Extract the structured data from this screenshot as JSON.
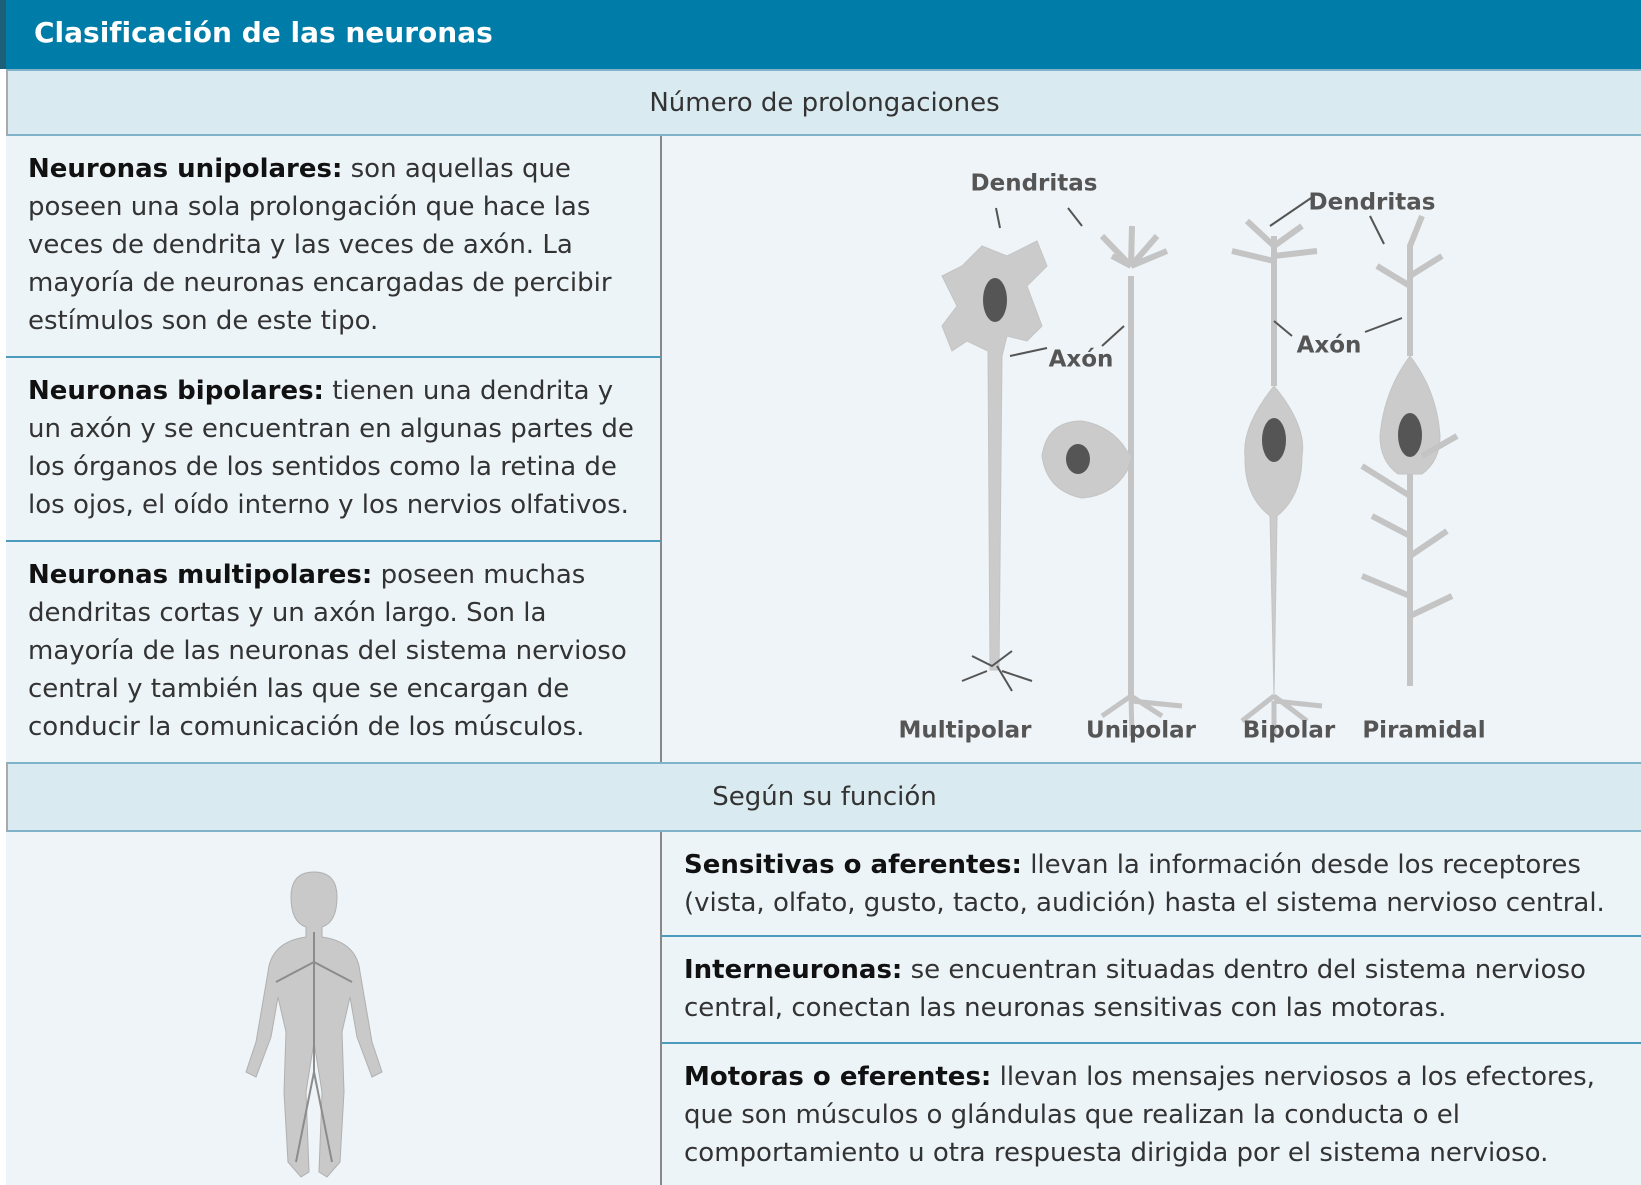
{
  "header": {
    "title": "Clasificación de las neuronas"
  },
  "sections": [
    {
      "heading": "Número de prolongaciones",
      "items": [
        {
          "term": "Neuronas unipolares:",
          "description": "son aquellas que poseen una sola prolongación que hace las veces de dendrita y las veces de axón. La mayoría de neuronas encargadas de percibir estímulos son de este tipo."
        },
        {
          "term": "Neuronas bipolares:",
          "description": "tienen una dendrita y un axón y se encuentran en algunas partes de los órganos de los sentidos como la retina de los ojos, el oído interno y los nervios olfativos."
        },
        {
          "term": "Neuronas multipolares:",
          "description": "poseen muchas dendritas cortas y un axón largo. Son la mayoría de las neuronas del sistema nervioso central y también las que se encargan de conducir la comunicación de los músculos."
        }
      ],
      "diagram": {
        "labels": [
          "Dendritas",
          "Dendritas",
          "Axón",
          "Axón"
        ],
        "types": [
          "Multipolar",
          "Unipolar",
          "Bipolar",
          "Piramidal"
        ]
      }
    },
    {
      "heading": "Según su función",
      "items": [
        {
          "term": "Sensitivas o aferentes:",
          "description": "llevan la información desde los receptores (vista, olfato, gusto, tacto, audición) hasta el sistema nervioso central."
        },
        {
          "term": "Interneuronas:",
          "description": "se encuentran situadas dentro del sistema nervioso central, conectan las neuronas sensitivas con las motoras."
        },
        {
          "term": "Motoras o eferentes:",
          "description": "llevan los mensajes nerviosos a los efectores, que son músculos o glándulas que realizan la conducta o el comportamiento u otra respuesta dirigida por el sistema nervioso."
        }
      ]
    }
  ]
}
